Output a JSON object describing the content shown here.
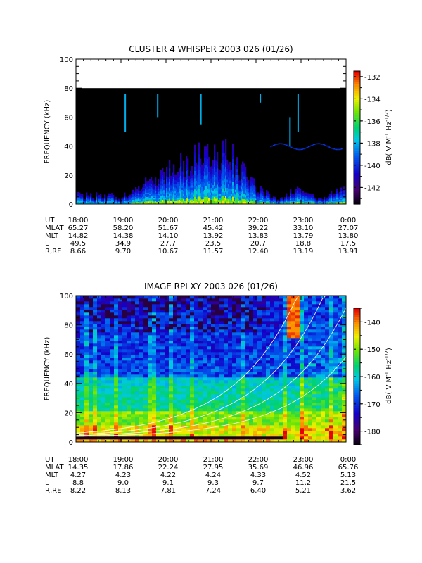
{
  "time_ticks": [
    "18:00",
    "19:00",
    "20:00",
    "21:00",
    "22:00",
    "23:00",
    "0:00"
  ],
  "chart_data": [
    {
      "type": "heatmap",
      "title": "CLUSTER 4 WHISPER 2003 026 (01/26)",
      "ylabel": "FREQUENCY (kHz)",
      "ylim": [
        0,
        100
      ],
      "yticks": [
        "0",
        "20",
        "40",
        "60",
        "80",
        "100"
      ],
      "data_ceiling_khz": 80,
      "colorbar": {
        "label": "dB( V M⁻¹ Hz⁻¹ᐟ²)",
        "label_text": "dB( V M",
        "label_parts": [
          "-1",
          " Hz",
          "-1/2",
          ")"
        ],
        "range": [
          -143.5,
          -131.5
        ],
        "ticks": [
          "-132",
          "-134",
          "-136",
          "-138",
          "-140",
          "-142"
        ]
      },
      "ephemeris": [
        {
          "label": "UT",
          "values": [
            "18:00",
            "19:00",
            "20:00",
            "21:00",
            "22:00",
            "23:00",
            "0:00"
          ]
        },
        {
          "label": "MLAT",
          "values": [
            "65.27",
            "58.20",
            "51.67",
            "45.42",
            "39.22",
            "33.10",
            "27.07"
          ]
        },
        {
          "label": "MLT",
          "values": [
            "14.82",
            "14.38",
            "14.10",
            "13.92",
            "13.83",
            "13.79",
            "13.80"
          ]
        },
        {
          "label": "L",
          "values": [
            "49.5",
            "34.9",
            "27.7",
            "23.5",
            "20.7",
            "18.8",
            "17.5"
          ]
        },
        {
          "label": "R,RE",
          "values": [
            "8.66",
            "9.70",
            "10.67",
            "11.57",
            "12.40",
            "13.19",
            "13.91"
          ]
        }
      ]
    },
    {
      "type": "heatmap",
      "title": "IMAGE RPI XY 2003 026 (01/26)",
      "ylabel": "FREQUENCY (kHz)",
      "ylim": [
        0,
        100
      ],
      "yticks": [
        "0",
        "20",
        "40",
        "60",
        "80",
        "100"
      ],
      "colorbar": {
        "label_text": "dB( V M",
        "label_parts": [
          "-1",
          " Hz",
          "-1/2",
          ")"
        ],
        "range": [
          -185,
          -135
        ],
        "ticks": [
          "-140",
          "-150",
          "-160",
          "-170",
          "-180"
        ]
      },
      "ephemeris": [
        {
          "label": "UT",
          "values": [
            "18:00",
            "19:00",
            "20:00",
            "21:00",
            "22:00",
            "23:00",
            "0:00"
          ]
        },
        {
          "label": "MLAT",
          "values": [
            "14.35",
            "17.86",
            "22.24",
            "27.95",
            "35.69",
            "46.96",
            "65.76"
          ]
        },
        {
          "label": "MLT",
          "values": [
            "4.27",
            "4.23",
            "4.22",
            "4.24",
            "4.33",
            "4.52",
            "5.13"
          ]
        },
        {
          "label": "L",
          "values": [
            "8.8",
            "9.0",
            "9.1",
            "9.3",
            "9.7",
            "11.2",
            "21.5"
          ]
        },
        {
          "label": "R,RE",
          "values": [
            "8.22",
            "8.13",
            "7.81",
            "7.24",
            "6.40",
            "5.21",
            "3.62"
          ]
        }
      ]
    }
  ]
}
